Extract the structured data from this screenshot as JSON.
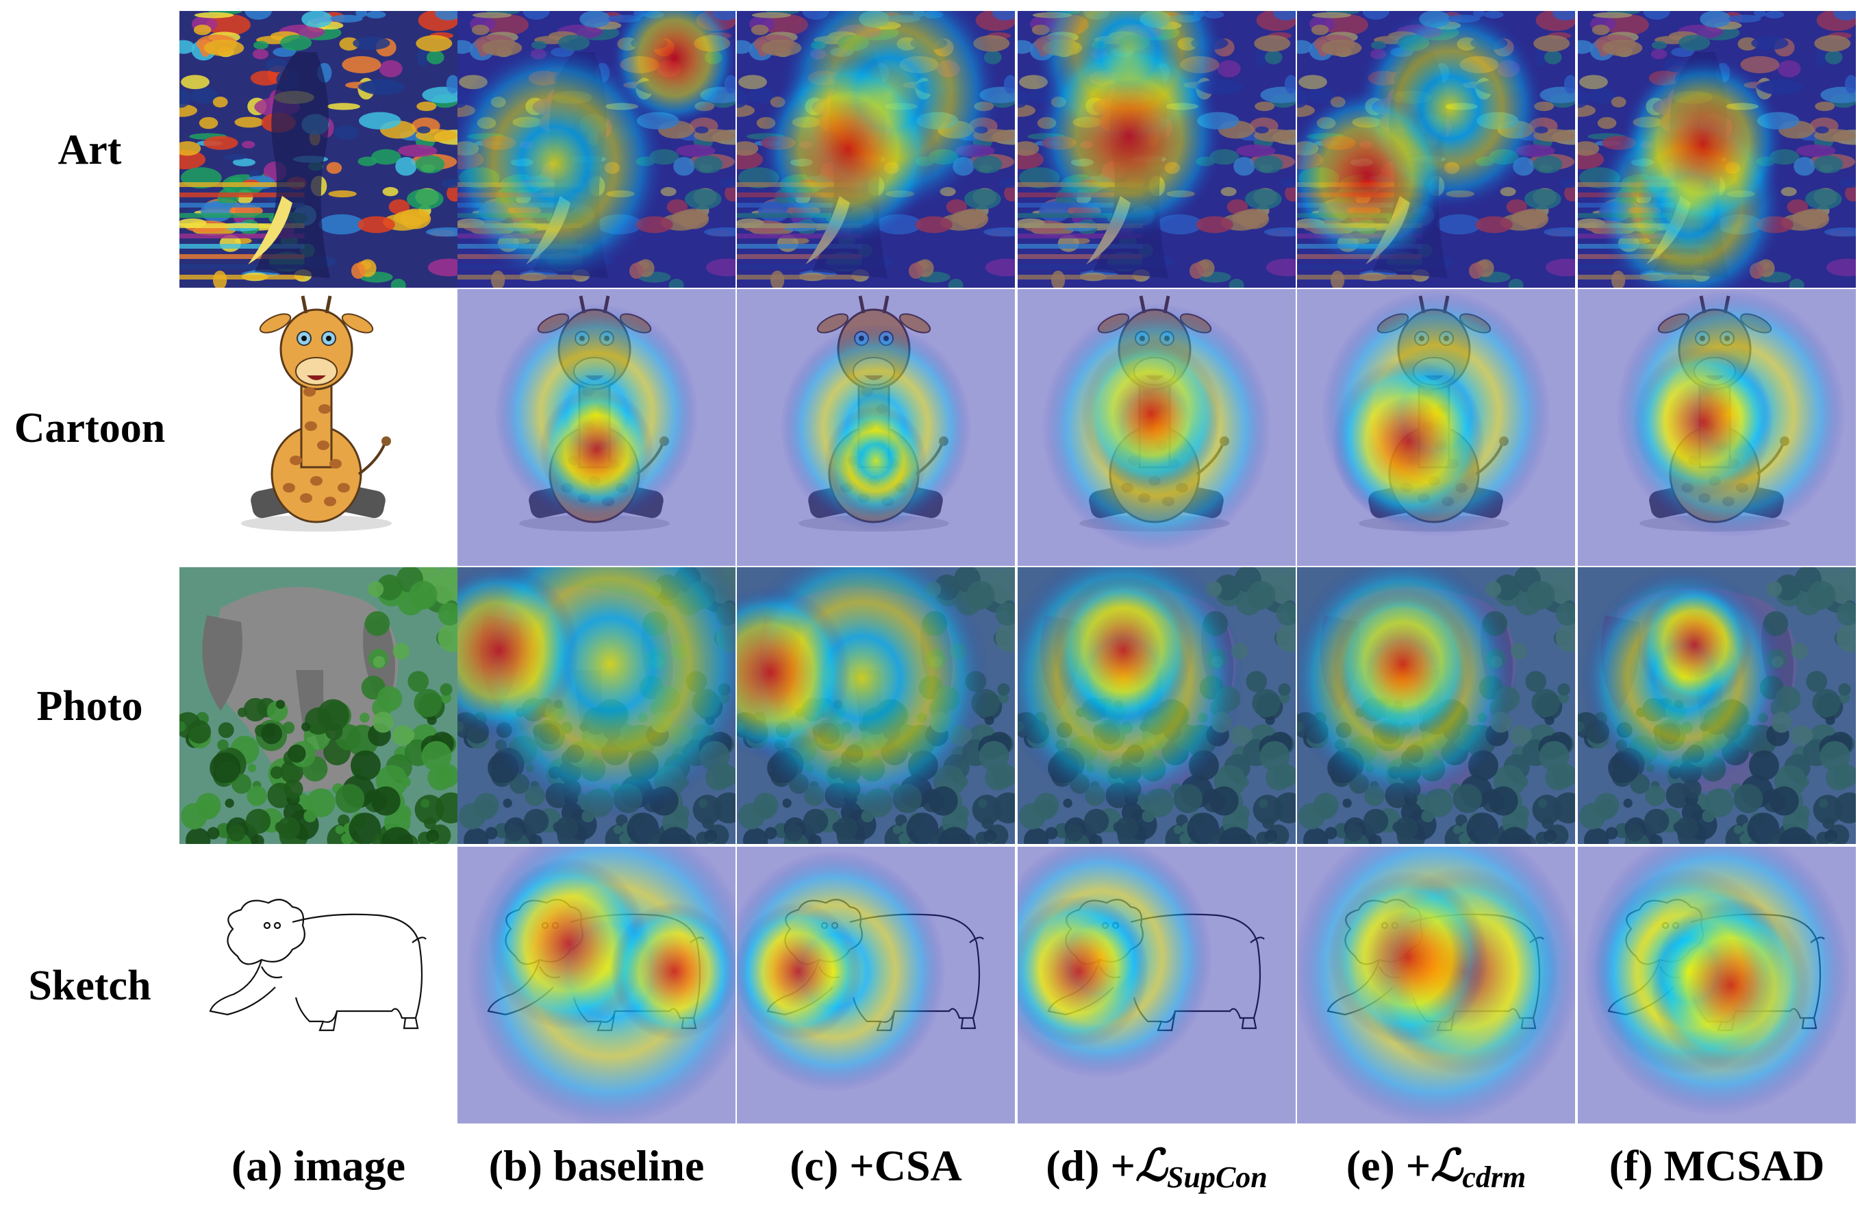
{
  "rows": [
    {
      "id": "art",
      "label": "Art",
      "subject": "elephant",
      "style": "painting"
    },
    {
      "id": "cartoon",
      "label": "Cartoon",
      "subject": "giraffe",
      "style": "cartoon"
    },
    {
      "id": "photo",
      "label": "Photo",
      "subject": "elephant",
      "style": "photo"
    },
    {
      "id": "sketch",
      "label": "Sketch",
      "subject": "elephant",
      "style": "sketch"
    }
  ],
  "columns": [
    {
      "id": "image",
      "prefix": "(a) ",
      "name": "image",
      "heatmap": false
    },
    {
      "id": "baseline",
      "prefix": "(b) ",
      "name": "baseline",
      "heatmap": true
    },
    {
      "id": "csa",
      "prefix": "(c) ",
      "name": "+CSA",
      "heatmap": true
    },
    {
      "id": "supcon",
      "prefix": "(d) +",
      "script": "ℒ",
      "sub": "SupCon",
      "heatmap": true
    },
    {
      "id": "cdrm",
      "prefix": "(e) +",
      "script": "ℒ",
      "sub": "cdrm",
      "heatmap": true
    },
    {
      "id": "mcsad",
      "prefix": "(f) ",
      "name": "MCSAD",
      "heatmap": true
    }
  ],
  "colors": {
    "jet_low": "#2a2aa8",
    "jet_mid_low": "#00c8ff",
    "jet_mid": "#f5f500",
    "jet_high": "#e00000",
    "sky": "#87b7d8",
    "foliage": "#2e6b2a",
    "elephant_grey": "#8a8a8a",
    "giraffe_body": "#e8a545",
    "giraffe_spot": "#b0662a",
    "background": "#ffffff"
  }
}
